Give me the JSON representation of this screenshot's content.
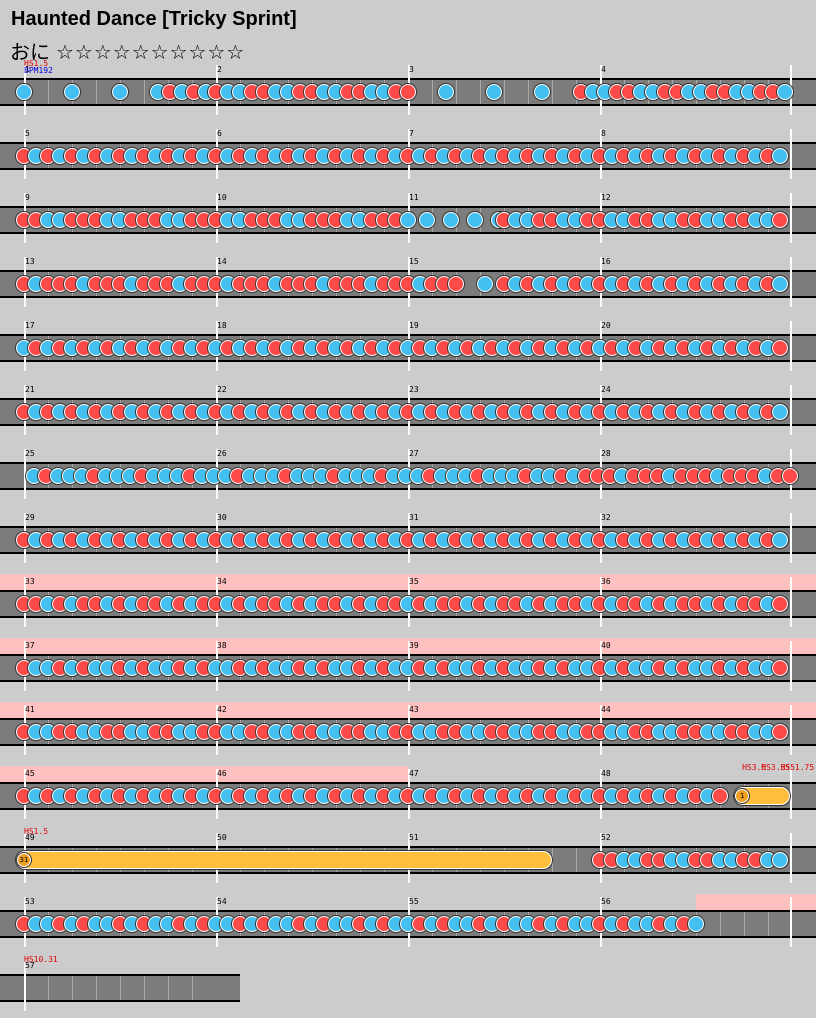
{
  "song": {
    "title": "Haunted Dance [Tricky Sprint]",
    "difficulty_label": "おに",
    "stars": "☆☆☆☆☆☆☆☆☆☆"
  },
  "colors": {
    "don": "#ff4a4a",
    "ka": "#44c0f0",
    "roll": "#ffbe3e",
    "gogo": "#ffc0c0",
    "lane": "#7c7c7c"
  },
  "rows": [
    {
      "measures": [
        "1",
        "2",
        "3",
        "4"
      ],
      "markers": [
        {
          "text": "HS1.5",
          "color": "#e00000",
          "line": 0
        },
        {
          "text": "BPM192",
          "color": "#0000e0",
          "line": 1
        }
      ],
      "gogo": [],
      "segments": [
        {
          "from": 0,
          "to": 0.55,
          "pattern": "k",
          "step": 6
        },
        {
          "from": 0.7,
          "to": 1.0,
          "pattern": "kd",
          "step": 1.5
        },
        {
          "from": 1.0,
          "to": 2.0,
          "pattern": "dkkd",
          "step": 1.5
        },
        {
          "from": 2.2,
          "to": 2.6,
          "pattern": "k",
          "step": 6
        },
        {
          "from": 2.7,
          "to": 2.8,
          "pattern": "k",
          "step": 6
        },
        {
          "from": 2.9,
          "to": 4.0,
          "pattern": "dkkd",
          "step": 1.5
        }
      ]
    },
    {
      "measures": [
        "5",
        "6",
        "7",
        "8"
      ],
      "markers": [],
      "gogo": [],
      "segments": [
        {
          "from": 0,
          "to": 4.0,
          "pattern": "dkdk",
          "step": 1.5
        }
      ]
    },
    {
      "measures": [
        "9",
        "10",
        "11",
        "12"
      ],
      "markers": [],
      "gogo": [],
      "segments": [
        {
          "from": 0,
          "to": 2.0,
          "pattern": "ddkkd",
          "step": 1.5
        },
        {
          "from": 2.1,
          "to": 2.5,
          "pattern": "k",
          "step": 3
        },
        {
          "from": 2.5,
          "to": 4.0,
          "pattern": "dkkd",
          "step": 1.5
        }
      ]
    },
    {
      "measures": [
        "13",
        "14",
        "15",
        "16"
      ],
      "markers": [],
      "gogo": [],
      "segments": [
        {
          "from": 0,
          "to": 2.3,
          "pattern": "dkdd",
          "step": 1.5
        },
        {
          "from": 2.4,
          "to": 2.5,
          "pattern": "k",
          "step": 3
        },
        {
          "from": 2.5,
          "to": 4.0,
          "pattern": "dkdk",
          "step": 1.5
        }
      ]
    },
    {
      "measures": [
        "17",
        "18",
        "19",
        "20"
      ],
      "markers": [],
      "gogo": [],
      "segments": [
        {
          "from": 0,
          "to": 4.0,
          "pattern": "kdkd",
          "step": 1.5
        }
      ]
    },
    {
      "measures": [
        "21",
        "22",
        "23",
        "24"
      ],
      "markers": [],
      "gogo": [],
      "segments": [
        {
          "from": 0,
          "to": 4.0,
          "pattern": "dkdk",
          "step": 1.5
        }
      ]
    },
    {
      "measures": [
        "25",
        "26",
        "27",
        "28"
      ],
      "markers": [],
      "gogo": [],
      "segments": [
        {
          "from": 0.05,
          "to": 2.8,
          "pattern": "kdkk",
          "step": 1.5
        },
        {
          "from": 2.8,
          "to": 4.0,
          "pattern": "dkdd",
          "step": 1.5
        }
      ]
    },
    {
      "measures": [
        "29",
        "30",
        "31",
        "32"
      ],
      "markers": [],
      "gogo": [],
      "segments": [
        {
          "from": 0,
          "to": 4.0,
          "pattern": "dkdk",
          "step": 1.5
        }
      ]
    },
    {
      "measures": [
        "33",
        "34",
        "35",
        "36"
      ],
      "markers": [],
      "gogo": [
        [
          0,
          4.25
        ]
      ],
      "segments": [
        {
          "from": 0,
          "to": 4.0,
          "pattern": "ddkdk",
          "step": 1.5
        }
      ]
    },
    {
      "measures": [
        "37",
        "38",
        "39",
        "40"
      ],
      "markers": [],
      "gogo": [
        [
          0,
          4.25
        ]
      ],
      "segments": [
        {
          "from": 0,
          "to": 4.0,
          "pattern": "dkkdk",
          "step": 1.5
        }
      ]
    },
    {
      "measures": [
        "41",
        "42",
        "43",
        "44"
      ],
      "markers": [],
      "gogo": [
        [
          0,
          4.25
        ]
      ],
      "segments": [
        {
          "from": 0,
          "to": 4.0,
          "pattern": "dkkd",
          "step": 1.5
        }
      ]
    },
    {
      "measures": [
        "45",
        "46",
        "47",
        "48"
      ],
      "markers": [
        {
          "text": "HS3.5",
          "color": "#e00000",
          "line": 0,
          "pos": 3.74
        },
        {
          "text": "HS3.35",
          "color": "#e00000",
          "line": 0,
          "pos": 3.84
        },
        {
          "text": "HS51.75",
          "color": "#e00000",
          "line": 0,
          "pos": 3.94
        }
      ],
      "gogo": [
        [
          0,
          2.0
        ]
      ],
      "segments": [
        {
          "from": 0,
          "to": 3.65,
          "pattern": "dkdk",
          "step": 1.5
        }
      ],
      "roll": {
        "from": 3.7,
        "to": 4.0,
        "label": "1"
      }
    },
    {
      "measures": [
        "49",
        "50",
        "51",
        "52"
      ],
      "markers": [
        {
          "text": "HS1.5",
          "color": "#e00000",
          "line": 0
        }
      ],
      "gogo": [],
      "segments": [
        {
          "from": 3.0,
          "to": 4.0,
          "pattern": "ddkk",
          "step": 1.5
        }
      ],
      "roll": {
        "from": 0,
        "to": 2.75,
        "label": "31"
      }
    },
    {
      "measures": [
        "53",
        "54",
        "55",
        "56"
      ],
      "markers": [],
      "gogo": [
        [
          3.5,
          4.25
        ]
      ],
      "segments": [
        {
          "from": 0,
          "to": 3.5,
          "pattern": "dkkdk",
          "step": 1.5
        }
      ]
    },
    {
      "measures": [
        "57"
      ],
      "markers": [
        {
          "text": "HS10.31",
          "color": "#e00000",
          "line": 0
        }
      ],
      "gogo": [],
      "short": true,
      "segments": []
    }
  ]
}
